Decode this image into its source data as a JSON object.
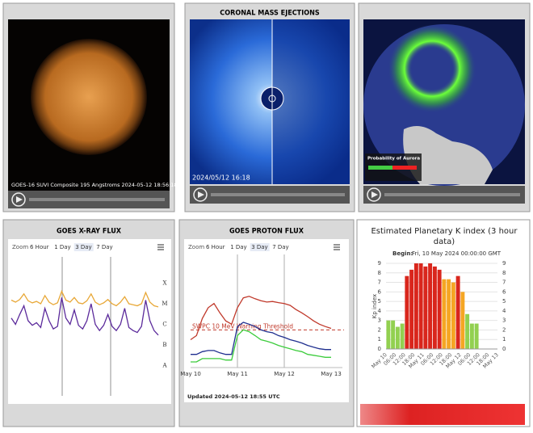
{
  "panels": [
    {
      "caption": "GOES-16 SUVI Composite 195 Angstroms 2024-05-12 18:56:18"
    },
    {
      "title": "CORONAL MASS EJECTIONS",
      "caption": "2024/05/12 16:18"
    },
    {
      "legend_title": "Probability of Aurora"
    }
  ],
  "chart_data": [
    {
      "type": "line",
      "title": "GOES X-RAY FLUX",
      "zoom_label": "Zoom",
      "zoom_options": [
        "6 Hour",
        "1 Day",
        "3 Day",
        "7 Day"
      ],
      "zoom_selected": 2,
      "log_scale": true,
      "ylim": [
        1e-09,
        0.001
      ],
      "yticks": [
        {
          "value": 1e-08,
          "label": "A"
        },
        {
          "value": 1e-07,
          "label": "B"
        },
        {
          "value": 1e-06,
          "label": "C"
        },
        {
          "value": 1e-05,
          "label": "M"
        },
        {
          "value": 0.0001,
          "label": "X"
        }
      ],
      "series": [
        {
          "color": "#e8a838",
          "values": [
            1.5e-05,
            1.2e-05,
            1.6e-05,
            3e-05,
            1.4e-05,
            1.1e-05,
            1.3e-05,
            1e-05,
            2.5e-05,
            1.2e-05,
            9e-06,
            1.1e-05,
            4e-05,
            1.5e-05,
            1.2e-05,
            2e-05,
            1.1e-05,
            1e-05,
            1.4e-05,
            3e-05,
            1.2e-05,
            9e-06,
            1.1e-05,
            1.6e-05,
            1e-05,
            8e-06,
            1.2e-05,
            2.2e-05,
            1e-05,
            9e-06,
            8e-06,
            1e-05,
            3.5e-05,
            1.2e-05,
            8e-06,
            7e-06
          ]
        },
        {
          "color": "#5b2a9b",
          "values": [
            2e-06,
            1e-06,
            3e-06,
            8e-06,
            1.5e-06,
            9e-07,
            1.2e-06,
            7e-07,
            6e-06,
            1.5e-06,
            6e-07,
            8e-07,
            2e-05,
            2e-06,
            1e-06,
            5e-06,
            9e-07,
            6e-07,
            1.5e-06,
            1e-05,
            1e-06,
            5e-07,
            9e-07,
            3e-06,
            8e-07,
            5e-07,
            1e-06,
            6e-06,
            7e-07,
            5e-07,
            4e-07,
            8e-07,
            1.5e-05,
            1.5e-06,
            5e-07,
            3e-07
          ]
        }
      ]
    },
    {
      "type": "line",
      "title": "GOES PROTON FLUX",
      "zoom_label": "Zoom",
      "zoom_options": [
        "6 Hour",
        "1 Day",
        "3 Day",
        "7 Day"
      ],
      "zoom_selected": 2,
      "log_scale": true,
      "ylim": [
        0.1,
        100000
      ],
      "xticks": [
        "May 10",
        "May 11",
        "May 12",
        "May 13"
      ],
      "threshold": {
        "value": 10,
        "label": "SWPC 10 MeV Warning Threshold",
        "color": "#c0392b"
      },
      "footnote": "Updated 2024-05-12 18:55 UTC",
      "series": [
        {
          "color": "#c0392b",
          "values": [
            3,
            5,
            40,
            150,
            250,
            80,
            30,
            20,
            150,
            500,
            600,
            450,
            350,
            300,
            320,
            280,
            250,
            200,
            120,
            80,
            50,
            30,
            20,
            15,
            12
          ]
        },
        {
          "color": "#1f2f8f",
          "values": [
            0.5,
            0.5,
            0.7,
            0.8,
            0.8,
            0.6,
            0.5,
            0.5,
            15,
            25,
            20,
            15,
            10,
            8,
            7,
            5,
            4,
            3,
            2.5,
            2,
            1.5,
            1.2,
            1,
            0.9,
            0.9
          ]
        },
        {
          "color": "#3ccc3c",
          "values": [
            0.2,
            0.2,
            0.3,
            0.3,
            0.3,
            0.3,
            0.25,
            0.25,
            5,
            10,
            8,
            5,
            3,
            2.5,
            2,
            1.5,
            1.2,
            1,
            0.8,
            0.7,
            0.5,
            0.45,
            0.4,
            0.35,
            0.35
          ]
        }
      ]
    },
    {
      "type": "bar",
      "title": "Estimated Planetary K index (3 hour data)",
      "subtitle_label": "Begin:",
      "subtitle": "Fri, 10 May 2024 00:00:00 GMT",
      "ylabel": "Kp index",
      "ylim": [
        0,
        9
      ],
      "yticks": [
        0,
        1,
        2,
        3,
        4,
        5,
        6,
        7,
        8,
        9
      ],
      "xticks": [
        "May 10",
        "06:00",
        "12:00",
        "18:00",
        "May 11",
        "06:00",
        "12:00",
        "18:00",
        "May 12",
        "06:00",
        "12:00",
        "18:00",
        "May 13"
      ],
      "values": [
        3,
        3,
        2.33,
        2.67,
        7.67,
        8.33,
        9,
        9,
        8.67,
        9,
        8.67,
        8.33,
        7.33,
        7.33,
        7,
        7.67,
        6,
        3.67,
        2.67,
        2.67
      ],
      "colors": [
        "#92d050",
        "#92d050",
        "#92d050",
        "#92d050",
        "#d9261c",
        "#d9261c",
        "#d9261c",
        "#d9261c",
        "#d9261c",
        "#d9261c",
        "#d9261c",
        "#d9261c",
        "#f5a623",
        "#f5a623",
        "#f5a623",
        "#d9261c",
        "#f5a623",
        "#92d050",
        "#92d050",
        "#92d050"
      ]
    }
  ]
}
